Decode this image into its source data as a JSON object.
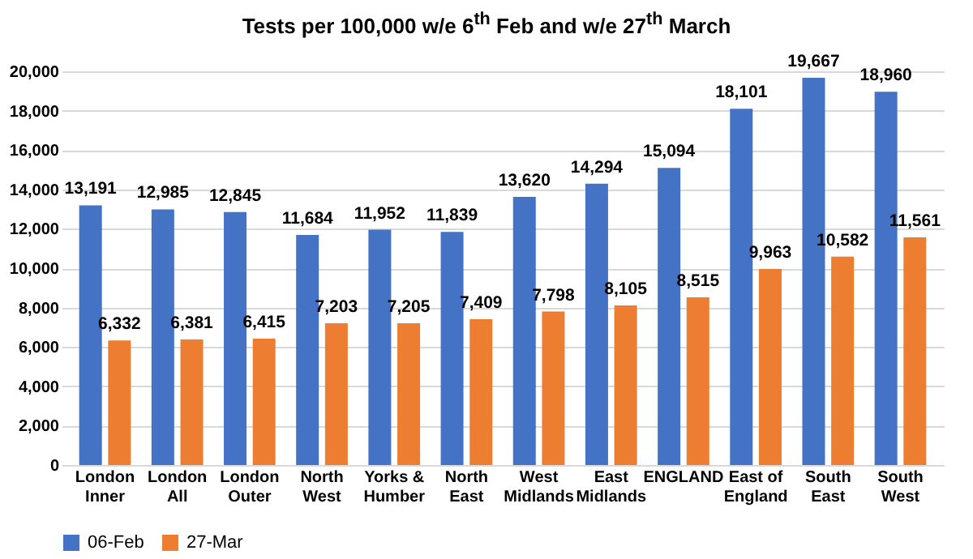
{
  "chart_data": {
    "type": "bar",
    "title": "Tests per 100,000 w/e 6$^{th}$ Feb and w/e 27$^{th}$ March",
    "categories": [
      "London Inner",
      "London All",
      "London Outer",
      "North West",
      "Yorks & Humber",
      "North East",
      "West Midlands",
      "East Midlands",
      "ENGLAND",
      "East of England",
      "South East",
      "South West"
    ],
    "series": [
      {
        "name": "06-Feb",
        "color": "#4472c4",
        "values": [
          13191,
          12985,
          12845,
          11684,
          11952,
          11839,
          13620,
          14294,
          15094,
          18101,
          19667,
          18960
        ],
        "value_labels": [
          "13,191",
          "12,985",
          "12,845",
          "11,684",
          "11,952",
          "11,839",
          "13,620",
          "14,294",
          "15,094",
          "18,101",
          "19,667",
          "18,960"
        ]
      },
      {
        "name": "27-Mar",
        "color": "#ed7d31",
        "values": [
          6332,
          6381,
          6415,
          7203,
          7205,
          7409,
          7798,
          8105,
          8515,
          9963,
          10582,
          11561
        ],
        "value_labels": [
          "6,332",
          "6,381",
          "6,415",
          "7,203",
          "7,205",
          "7,409",
          "7,798",
          "8,105",
          "8,515",
          "9,963",
          "10,582",
          "11,561"
        ]
      }
    ],
    "ylim": [
      0,
      20000
    ],
    "yticks": [
      0,
      {
        "value": 2000,
        "label": "2,000"
      },
      {
        "value": 4000,
        "label": "4,000"
      },
      {
        "value": 6000,
        "label": "6,000"
      },
      {
        "value": 8000,
        "label": "8,000"
      },
      {
        "value": 10000,
        "label": "10,000"
      },
      {
        "value": 12000,
        "label": "12,000"
      },
      {
        "value": 14000,
        "label": "14,000"
      },
      {
        "value": 16000,
        "label": "16,000"
      },
      {
        "value": 18000,
        "label": "18,000"
      },
      {
        "value": 20000,
        "label": "20,000"
      }
    ],
    "grid": "y",
    "legend": "bottom"
  }
}
